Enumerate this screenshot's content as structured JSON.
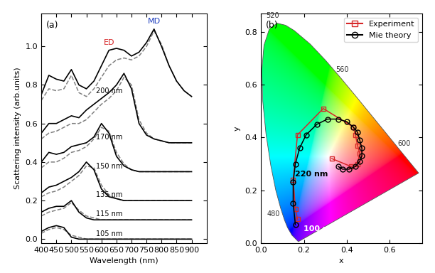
{
  "chart_data": [
    {
      "type": "line",
      "panel_label": "(a)",
      "x_label": "Wavelength (nm)",
      "y_label": "Scattering intensity (arb.units)",
      "x": [
        400,
        425,
        450,
        475,
        500,
        525,
        550,
        575,
        600,
        625,
        650,
        675,
        700,
        725,
        750,
        775,
        800,
        825,
        850,
        875,
        900
      ],
      "xlim": [
        400,
        950
      ],
      "xticks": [
        400,
        450,
        500,
        550,
        600,
        650,
        700,
        750,
        800,
        850,
        900
      ],
      "ylim": [
        -0.02,
        1.17
      ],
      "yticks": [
        {
          "value": 0,
          "label": "0.0"
        },
        0.2,
        0.4,
        0.6,
        0.8,
        {
          "value": 1,
          "label": "1.0"
        }
      ],
      "grid": false,
      "peak_labels": [
        {
          "text": "ED",
          "color": "#d62728",
          "series": "200 nm",
          "x": 625
        },
        {
          "text": "MD",
          "color": "#1f3fbf",
          "series": "200 nm",
          "x": 775
        }
      ],
      "series": [
        {
          "name": "200 nm",
          "experiment": {
            "color": "#000000",
            "line_style": "solid",
            "values": [
              0.75,
              0.85,
              0.83,
              0.82,
              0.88,
              0.8,
              0.78,
              0.82,
              0.9,
              0.98,
              0.99,
              0.98,
              0.95,
              0.97,
              1.02,
              1.09,
              1.0,
              0.9,
              0.82,
              0.77,
              0.74
            ]
          },
          "theory": {
            "color": "#808080",
            "line_style": "dashed",
            "values": [
              0.72,
              0.78,
              0.77,
              0.78,
              0.85,
              0.76,
              0.74,
              0.78,
              0.84,
              0.9,
              0.93,
              0.94,
              0.93,
              0.95,
              1.0,
              1.08,
              1.01,
              0.9,
              0.82,
              0.77,
              0.74
            ]
          }
        },
        {
          "name": "170 nm",
          "experiment": {
            "color": "#000000",
            "line_style": "solid",
            "values": [
              0.55,
              0.6,
              0.6,
              0.62,
              0.64,
              0.63,
              0.67,
              0.7,
              0.73,
              0.76,
              0.8,
              0.86,
              0.78,
              0.6,
              0.54,
              0.52,
              0.51,
              0.5,
              0.5,
              0.5,
              0.5
            ]
          },
          "theory": {
            "color": "#808080",
            "line_style": "dashed",
            "values": [
              0.52,
              0.55,
              0.56,
              0.58,
              0.6,
              0.6,
              0.62,
              0.66,
              0.7,
              0.73,
              0.77,
              0.84,
              0.8,
              0.62,
              0.55,
              0.52,
              0.51,
              0.5,
              0.5,
              0.5,
              0.5
            ]
          }
        },
        {
          "name": "150 nm",
          "experiment": {
            "color": "#000000",
            "line_style": "solid",
            "values": [
              0.4,
              0.45,
              0.44,
              0.45,
              0.48,
              0.49,
              0.5,
              0.53,
              0.6,
              0.55,
              0.43,
              0.38,
              0.36,
              0.35,
              0.35,
              0.35,
              0.35,
              0.35,
              0.35,
              0.35,
              0.35
            ]
          },
          "theory": {
            "color": "#808080",
            "line_style": "dashed",
            "values": [
              0.37,
              0.4,
              0.4,
              0.42,
              0.45,
              0.46,
              0.48,
              0.52,
              0.58,
              0.56,
              0.45,
              0.39,
              0.36,
              0.35,
              0.35,
              0.35,
              0.35,
              0.35,
              0.35,
              0.35,
              0.35
            ]
          }
        },
        {
          "name": "135 nm",
          "experiment": {
            "color": "#000000",
            "line_style": "solid",
            "values": [
              0.24,
              0.27,
              0.28,
              0.3,
              0.32,
              0.35,
              0.4,
              0.36,
              0.26,
              0.22,
              0.21,
              0.2,
              0.2,
              0.2,
              0.2,
              0.2,
              0.2,
              0.2,
              0.2,
              0.2,
              0.2
            ]
          },
          "theory": {
            "color": "#808080",
            "line_style": "dashed",
            "values": [
              0.22,
              0.24,
              0.25,
              0.27,
              0.3,
              0.33,
              0.38,
              0.37,
              0.28,
              0.23,
              0.21,
              0.2,
              0.2,
              0.2,
              0.2,
              0.2,
              0.2,
              0.2,
              0.2,
              0.2,
              0.2
            ]
          }
        },
        {
          "name": "115 nm",
          "experiment": {
            "color": "#000000",
            "line_style": "solid",
            "values": [
              0.14,
              0.16,
              0.17,
              0.17,
              0.2,
              0.14,
              0.11,
              0.1,
              0.1,
              0.1,
              0.1,
              0.1,
              0.1,
              0.1,
              0.1,
              0.1,
              0.1,
              0.1,
              0.1,
              0.1,
              0.1
            ]
          },
          "theory": {
            "color": "#808080",
            "line_style": "dashed",
            "values": [
              0.12,
              0.14,
              0.15,
              0.16,
              0.19,
              0.15,
              0.12,
              0.11,
              0.1,
              0.1,
              0.1,
              0.1,
              0.1,
              0.1,
              0.1,
              0.1,
              0.1,
              0.1,
              0.1,
              0.1,
              0.1
            ]
          }
        },
        {
          "name": "105 nm",
          "experiment": {
            "color": "#000000",
            "line_style": "solid",
            "values": [
              0.04,
              0.06,
              0.07,
              0.06,
              0.01,
              0,
              0,
              0,
              0,
              0,
              0,
              0,
              0,
              0,
              0,
              0,
              0,
              0,
              0,
              0,
              0
            ]
          },
          "theory": {
            "color": "#808080",
            "line_style": "dashed",
            "values": [
              0.03,
              0.05,
              0.06,
              0.05,
              0.02,
              0.01,
              0,
              0,
              0,
              0,
              0,
              0,
              0,
              0,
              0,
              0,
              0,
              0,
              0,
              0,
              0
            ]
          }
        }
      ]
    },
    {
      "type": "scatter",
      "panel_label": "(b)",
      "x_label": "x",
      "y_label": "y",
      "xlim": [
        0,
        0.75
      ],
      "xticks": [
        {
          "value": 0,
          "label": "0.0"
        },
        0.2,
        0.4,
        0.6
      ],
      "ylim": [
        0,
        0.87
      ],
      "yticks": [
        {
          "value": 0,
          "label": "0.0"
        },
        0.2,
        0.4,
        0.6,
        0.8
      ],
      "grid": false,
      "legend": "upper right",
      "endpoint_labels": [
        "100 nm",
        "220 nm"
      ],
      "spectral_locus": {
        "wavelengths": [
          380,
          460,
          470,
          475,
          480,
          485,
          490,
          495,
          500,
          505,
          510,
          515,
          520,
          525,
          530,
          540,
          550,
          560,
          570,
          580,
          590,
          600,
          620,
          650,
          700
        ],
        "x": [
          0.1741,
          0.144,
          0.1241,
          0.1096,
          0.0913,
          0.0687,
          0.0454,
          0.0235,
          0.0082,
          0.0039,
          0.0139,
          0.0389,
          0.0743,
          0.1142,
          0.1547,
          0.2296,
          0.3016,
          0.3731,
          0.4441,
          0.5125,
          0.5752,
          0.627,
          0.6915,
          0.726,
          0.7347
        ],
        "y": [
          0.005,
          0.0297,
          0.0578,
          0.0868,
          0.1327,
          0.2007,
          0.295,
          0.4127,
          0.5384,
          0.6548,
          0.7502,
          0.812,
          0.8338,
          0.8262,
          0.8059,
          0.7543,
          0.6923,
          0.6245,
          0.5547,
          0.4866,
          0.4242,
          0.3725,
          0.3083,
          0.274,
          0.2653
        ]
      },
      "locus_labels": [
        480,
        520,
        560,
        600
      ],
      "series": [
        {
          "name": "Experiment",
          "color": "#d62728",
          "marker": "square",
          "line_style": "solid",
          "x": [
            0.17,
            0.16,
            0.15,
            0.17,
            0.29,
            0.43,
            0.44,
            0.45,
            0.46,
            0.45,
            0.42,
            0.33
          ],
          "values": [
            0.09,
            0.13,
            0.24,
            0.41,
            0.51,
            0.44,
            0.41,
            0.37,
            0.34,
            0.3,
            0.29,
            0.32
          ]
        },
        {
          "name": "Mie theory",
          "color": "#000000",
          "marker": "circle",
          "line_style": "solid",
          "x": [
            0.16,
            0.15,
            0.15,
            0.16,
            0.18,
            0.21,
            0.26,
            0.31,
            0.36,
            0.4,
            0.43,
            0.45,
            0.46,
            0.47,
            0.47,
            0.46,
            0.44,
            0.41,
            0.38,
            0.36
          ],
          "values": [
            0.07,
            0.15,
            0.23,
            0.3,
            0.36,
            0.41,
            0.45,
            0.47,
            0.47,
            0.46,
            0.44,
            0.42,
            0.39,
            0.36,
            0.33,
            0.31,
            0.29,
            0.28,
            0.28,
            0.29
          ]
        }
      ]
    }
  ]
}
